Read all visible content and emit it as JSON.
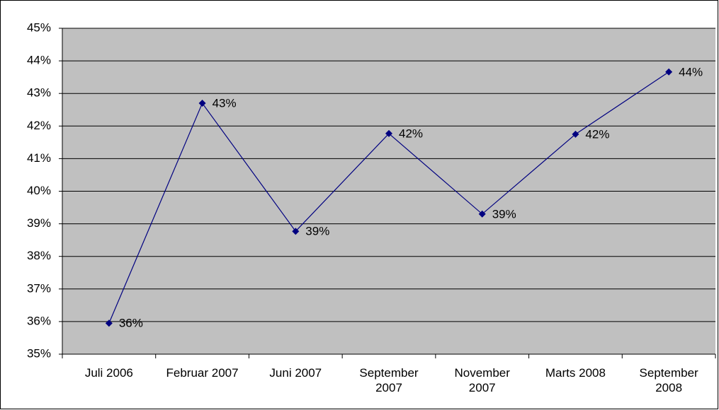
{
  "chart_data": {
    "type": "line",
    "categories": [
      "Juli 2006",
      "Februar 2007",
      "Juni 2007",
      "September 2007",
      "November 2007",
      "Marts 2008",
      "September 2008"
    ],
    "series": [
      {
        "color": "#000080",
        "values": [
          35.95,
          42.7,
          38.77,
          41.77,
          39.3,
          41.75,
          43.66
        ],
        "value_labels": [
          "36%",
          "43%",
          "39%",
          "42%",
          "39%",
          "42%",
          "44%"
        ]
      }
    ],
    "ylim": [
      35,
      45
    ],
    "yticks": [
      {
        "value": 35,
        "label": "35%"
      },
      {
        "value": 36,
        "label": "36%"
      },
      {
        "value": 37,
        "label": "37%"
      },
      {
        "value": 38,
        "label": "38%"
      },
      {
        "value": 39,
        "label": "39%"
      },
      {
        "value": 40,
        "label": "40%"
      },
      {
        "value": 41,
        "label": "41%"
      },
      {
        "value": 42,
        "label": "42%"
      },
      {
        "value": 43,
        "label": "43%"
      },
      {
        "value": 44,
        "label": "44%"
      },
      {
        "value": 45,
        "label": "45%"
      }
    ],
    "grid": true,
    "plot_background": "#c0c0c0"
  }
}
